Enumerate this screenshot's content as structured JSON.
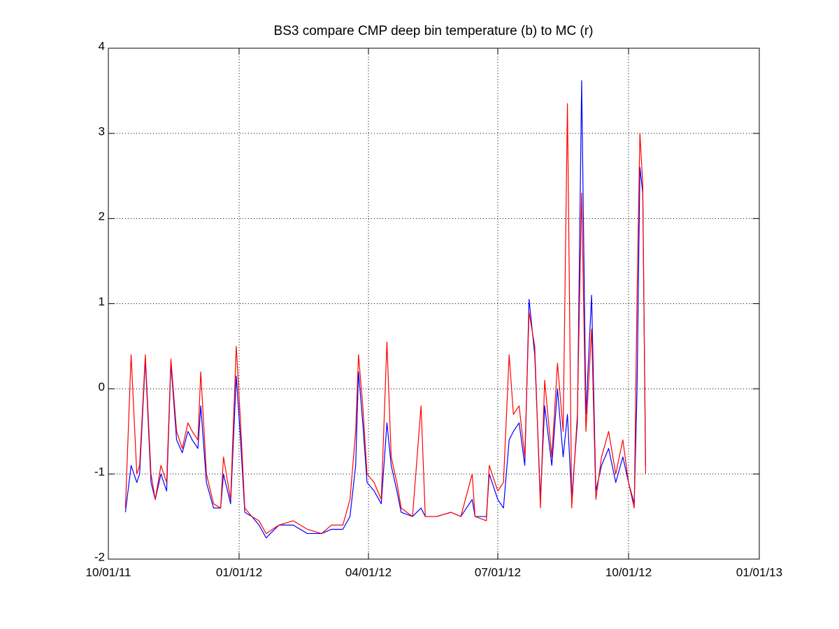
{
  "chart_data": {
    "type": "line",
    "title": "BS3 compare CMP deep bin temperature (b) to MC (r)",
    "x": [
      "2011-10-13",
      "2011-10-17",
      "2011-10-21",
      "2011-10-23",
      "2011-10-27",
      "2011-10-31",
      "2011-11-03",
      "2011-11-07",
      "2011-11-11",
      "2011-11-14",
      "2011-11-18",
      "2011-11-22",
      "2011-11-26",
      "2011-11-29",
      "2011-12-03",
      "2011-12-05",
      "2011-12-09",
      "2011-12-14",
      "2011-12-19",
      "2011-12-21",
      "2011-12-26",
      "2011-12-30",
      "2012-01-02",
      "2012-01-05",
      "2012-01-10",
      "2012-01-15",
      "2012-01-20",
      "2012-01-29",
      "2012-02-08",
      "2012-02-18",
      "2012-02-28",
      "2012-03-06",
      "2012-03-14",
      "2012-03-19",
      "2012-03-23",
      "2012-03-25",
      "2012-03-28",
      "2012-03-31",
      "2012-04-05",
      "2012-04-10",
      "2012-04-14",
      "2012-04-17",
      "2012-04-21",
      "2012-04-24",
      "2012-05-02",
      "2012-05-08",
      "2012-05-11",
      "2012-05-19",
      "2012-05-29",
      "2012-06-05",
      "2012-06-13",
      "2012-06-15",
      "2012-06-23",
      "2012-06-25",
      "2012-07-01",
      "2012-07-05",
      "2012-07-09",
      "2012-07-12",
      "2012-07-16",
      "2012-07-20",
      "2012-07-23",
      "2012-07-27",
      "2012-07-31",
      "2012-08-03",
      "2012-08-08",
      "2012-08-12",
      "2012-08-16",
      "2012-08-19",
      "2012-08-22",
      "2012-08-26",
      "2012-08-29",
      "2012-09-01",
      "2012-09-05",
      "2012-09-08",
      "2012-09-12",
      "2012-09-17",
      "2012-09-22",
      "2012-09-27",
      "2012-10-01",
      "2012-10-05",
      "2012-10-07",
      "2012-10-09",
      "2012-10-11",
      "2012-10-13"
    ],
    "series": [
      {
        "color": "#0000ff",
        "values": [
          -1.45,
          -0.9,
          -1.1,
          -1.0,
          0.35,
          -1.1,
          -1.3,
          -1.0,
          -1.2,
          0.3,
          -0.6,
          -0.75,
          -0.5,
          -0.6,
          -0.7,
          -0.2,
          -1.1,
          -1.4,
          -1.4,
          -1.0,
          -1.35,
          0.15,
          -0.6,
          -1.45,
          -1.5,
          -1.6,
          -1.75,
          -1.6,
          -1.6,
          -1.7,
          -1.7,
          -1.65,
          -1.65,
          -1.5,
          -0.9,
          0.2,
          -0.4,
          -1.1,
          -1.2,
          -1.35,
          -0.4,
          -0.9,
          -1.2,
          -1.45,
          -1.5,
          -1.4,
          -1.5,
          -1.5,
          -1.45,
          -1.5,
          -1.3,
          -1.5,
          -1.5,
          -1.0,
          -1.3,
          -1.4,
          -0.6,
          -0.5,
          -0.4,
          -0.9,
          1.05,
          0.4,
          -1.3,
          -0.2,
          -0.9,
          0.0,
          -0.8,
          -0.3,
          -1.3,
          -0.4,
          3.62,
          -0.3,
          1.1,
          -1.2,
          -0.9,
          -0.7,
          -1.1,
          -0.8,
          -1.1,
          -1.35,
          0.0,
          2.6,
          2.3,
          -0.9
        ]
      },
      {
        "color": "#ff0000",
        "values": [
          -1.4,
          0.4,
          -1.0,
          -0.9,
          0.4,
          -1.0,
          -1.3,
          -0.9,
          -1.1,
          0.35,
          -0.5,
          -0.7,
          -0.4,
          -0.5,
          -0.6,
          0.2,
          -1.0,
          -1.35,
          -1.4,
          -0.8,
          -1.3,
          0.5,
          -0.4,
          -1.4,
          -1.5,
          -1.55,
          -1.7,
          -1.6,
          -1.55,
          -1.65,
          -1.7,
          -1.6,
          -1.6,
          -1.3,
          -0.5,
          0.4,
          -0.2,
          -1.0,
          -1.1,
          -1.3,
          0.55,
          -0.8,
          -1.1,
          -1.4,
          -1.5,
          -0.2,
          -1.5,
          -1.5,
          -1.45,
          -1.5,
          -1.0,
          -1.5,
          -1.55,
          -0.9,
          -1.2,
          -1.1,
          0.4,
          -0.3,
          -0.2,
          -0.8,
          0.9,
          0.5,
          -1.4,
          0.1,
          -0.8,
          0.3,
          -0.5,
          3.35,
          -1.4,
          -0.3,
          2.3,
          -0.5,
          0.7,
          -1.3,
          -0.8,
          -0.5,
          -1.0,
          -0.6,
          -1.1,
          -1.4,
          1.1,
          3.0,
          2.4,
          -1.0
        ]
      }
    ],
    "xlim": [
      "2011-10-01",
      "2013-01-01"
    ],
    "xticks": [
      {
        "value": "2011-10-01",
        "label": "10/01/11"
      },
      {
        "value": "2012-01-01",
        "label": "01/01/12"
      },
      {
        "value": "2012-04-01",
        "label": "04/01/12"
      },
      {
        "value": "2012-07-01",
        "label": "07/01/12"
      },
      {
        "value": "2012-10-01",
        "label": "10/01/12"
      },
      {
        "value": "2013-01-01",
        "label": "01/01/13"
      }
    ],
    "ylim": [
      -2,
      4
    ],
    "yticks": [
      -2,
      -1,
      0,
      1,
      2,
      3,
      4
    ],
    "grid": true
  }
}
